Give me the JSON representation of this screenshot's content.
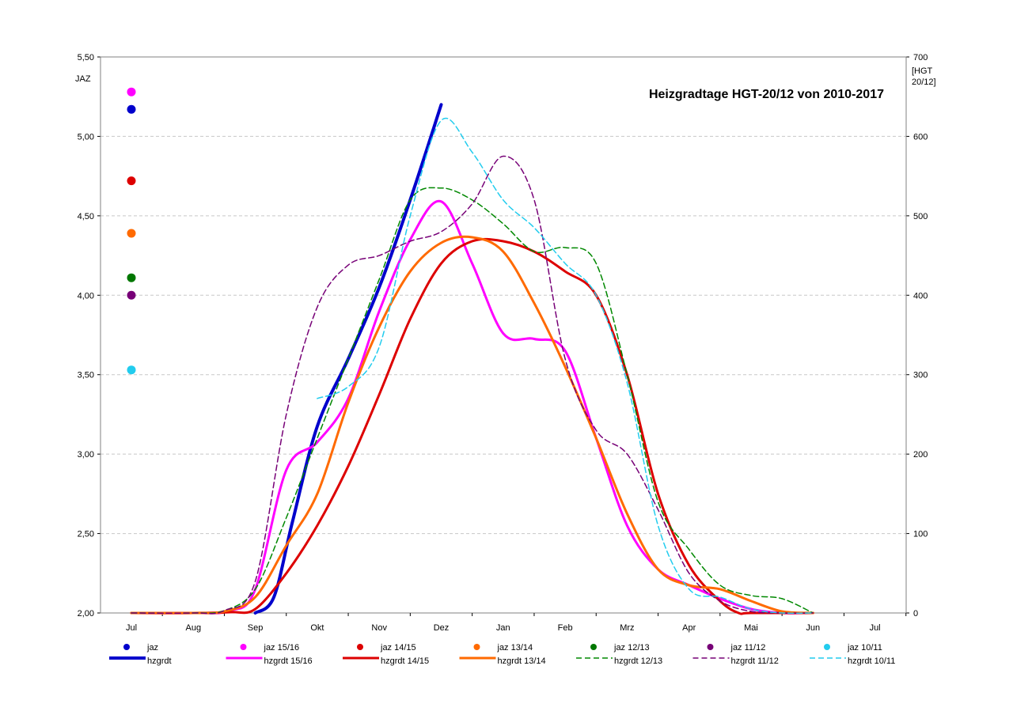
{
  "chart_data": {
    "type": "line",
    "title": "Heizgradtage HGT-20/12 von 2010-2017",
    "y_left_label": "JAZ",
    "y_right_label_lines": [
      "[HGT",
      "20/12]"
    ],
    "y_left_range": [
      2.0,
      5.5
    ],
    "y_left_ticks": [
      "2,00",
      "2,50",
      "3,00",
      "3,50",
      "4,00",
      "4,50",
      "5,00",
      "5,50"
    ],
    "y_right_range": [
      0,
      700
    ],
    "y_right_ticks": [
      "0",
      "100",
      "200",
      "300",
      "400",
      "500",
      "600",
      "700"
    ],
    "x_categories": [
      "Jul",
      "Aug",
      "Sep",
      "Okt",
      "Nov",
      "Dez",
      "Jan",
      "Feb",
      "Mrz",
      "Apr",
      "Mai",
      "Jun",
      "Jul"
    ],
    "grid": "horizontal dashed",
    "legend_position": "bottom",
    "jaz_points": [
      {
        "name": "jaz",
        "value": 5.17,
        "color": "#0000cc"
      },
      {
        "name": "jaz 15/16",
        "value": 5.28,
        "color": "#ff00ff"
      },
      {
        "name": "jaz 14/15",
        "value": 4.72,
        "color": "#dd0000"
      },
      {
        "name": "jaz 13/14",
        "value": 4.39,
        "color": "#ff6a00"
      },
      {
        "name": "jaz 12/13",
        "value": 4.11,
        "color": "#007700"
      },
      {
        "name": "jaz 11/12",
        "value": 4.0,
        "color": "#770077"
      },
      {
        "name": "jaz 10/11",
        "value": 3.53,
        "color": "#22ccee"
      }
    ],
    "series": [
      {
        "name": "hzgrdt",
        "color": "#0000cc",
        "dash": false,
        "width": 4,
        "points": [
          [
            2.0,
            0
          ],
          [
            2.3,
            20
          ],
          [
            2.6,
            115
          ],
          [
            3.0,
            235
          ],
          [
            3.5,
            320
          ],
          [
            4.0,
            410
          ],
          [
            4.5,
            520
          ],
          [
            5.0,
            640
          ]
        ]
      },
      {
        "name": "hzgrdt 15/16",
        "color": "#ff00ff",
        "dash": false,
        "width": 3,
        "points": [
          [
            0,
            0
          ],
          [
            1.0,
            0
          ],
          [
            1.6,
            3
          ],
          [
            2.0,
            30
          ],
          [
            2.5,
            180
          ],
          [
            3.0,
            215
          ],
          [
            3.5,
            270
          ],
          [
            4.0,
            380
          ],
          [
            4.5,
            470
          ],
          [
            5.0,
            518
          ],
          [
            5.5,
            440
          ],
          [
            6.0,
            352
          ],
          [
            6.5,
            345
          ],
          [
            7.0,
            330
          ],
          [
            7.5,
            220
          ],
          [
            8.0,
            110
          ],
          [
            8.5,
            55
          ],
          [
            9.0,
            35
          ],
          [
            9.5,
            18
          ],
          [
            10.0,
            5
          ],
          [
            10.5,
            0
          ],
          [
            11.0,
            0
          ]
        ]
      },
      {
        "name": "hzgrdt 14/15",
        "color": "#dd0000",
        "dash": false,
        "width": 3,
        "points": [
          [
            0,
            0
          ],
          [
            1.0,
            0
          ],
          [
            1.6,
            1
          ],
          [
            2.0,
            5
          ],
          [
            2.5,
            50
          ],
          [
            3.0,
            110
          ],
          [
            3.5,
            185
          ],
          [
            4.0,
            275
          ],
          [
            4.5,
            370
          ],
          [
            5.0,
            440
          ],
          [
            5.5,
            468
          ],
          [
            6.0,
            468
          ],
          [
            6.5,
            455
          ],
          [
            7.0,
            430
          ],
          [
            7.5,
            400
          ],
          [
            8.0,
            300
          ],
          [
            8.5,
            150
          ],
          [
            9.0,
            60
          ],
          [
            9.5,
            15
          ],
          [
            9.8,
            0
          ],
          [
            10.0,
            0
          ],
          [
            11.0,
            0
          ]
        ]
      },
      {
        "name": "hzgrdt 13/14",
        "color": "#ff6a00",
        "dash": false,
        "width": 3,
        "points": [
          [
            0,
            0
          ],
          [
            1.0,
            0
          ],
          [
            1.5,
            2
          ],
          [
            2.0,
            20
          ],
          [
            2.5,
            85
          ],
          [
            3.0,
            150
          ],
          [
            3.5,
            265
          ],
          [
            4.0,
            360
          ],
          [
            4.5,
            430
          ],
          [
            5.0,
            466
          ],
          [
            5.5,
            473
          ],
          [
            6.0,
            455
          ],
          [
            6.5,
            390
          ],
          [
            7.0,
            310
          ],
          [
            7.5,
            220
          ],
          [
            8.0,
            125
          ],
          [
            8.5,
            55
          ],
          [
            9.0,
            35
          ],
          [
            9.5,
            30
          ],
          [
            10.0,
            15
          ],
          [
            10.5,
            2
          ],
          [
            11.0,
            0
          ]
        ]
      },
      {
        "name": "hzgrdt 12/13",
        "color": "#008800",
        "dash": true,
        "width": 1.5,
        "points": [
          [
            0,
            0
          ],
          [
            1.0,
            0
          ],
          [
            1.5,
            3
          ],
          [
            2.0,
            30
          ],
          [
            2.5,
            120
          ],
          [
            3.0,
            220
          ],
          [
            3.5,
            320
          ],
          [
            4.0,
            420
          ],
          [
            4.5,
            520
          ],
          [
            5.0,
            535
          ],
          [
            5.5,
            520
          ],
          [
            6.0,
            490
          ],
          [
            6.5,
            455
          ],
          [
            7.0,
            460
          ],
          [
            7.5,
            440
          ],
          [
            8.0,
            300
          ],
          [
            8.5,
            140
          ],
          [
            9.0,
            80
          ],
          [
            9.5,
            35
          ],
          [
            10.0,
            22
          ],
          [
            10.5,
            18
          ],
          [
            11.0,
            0
          ]
        ]
      },
      {
        "name": "hzgrdt 11/12",
        "color": "#770077",
        "dash": true,
        "width": 1.5,
        "points": [
          [
            0,
            0
          ],
          [
            1.0,
            0
          ],
          [
            1.5,
            3
          ],
          [
            2.0,
            40
          ],
          [
            2.5,
            250
          ],
          [
            3.0,
            385
          ],
          [
            3.5,
            438
          ],
          [
            4.0,
            450
          ],
          [
            4.5,
            468
          ],
          [
            5.0,
            480
          ],
          [
            5.5,
            515
          ],
          [
            6.0,
            575
          ],
          [
            6.5,
            520
          ],
          [
            7.0,
            320
          ],
          [
            7.5,
            230
          ],
          [
            8.0,
            200
          ],
          [
            8.5,
            130
          ],
          [
            9.0,
            50
          ],
          [
            9.5,
            15
          ],
          [
            10.0,
            2
          ],
          [
            10.5,
            0
          ],
          [
            11.0,
            0
          ]
        ]
      },
      {
        "name": "hzgrdt 10/11",
        "color": "#22ccee",
        "dash": true,
        "width": 1.5,
        "points": [
          [
            3.0,
            270
          ],
          [
            3.5,
            285
          ],
          [
            4.0,
            335
          ],
          [
            4.5,
            500
          ],
          [
            5.0,
            620
          ],
          [
            5.5,
            580
          ],
          [
            6.0,
            520
          ],
          [
            6.5,
            485
          ],
          [
            7.0,
            440
          ],
          [
            7.5,
            400
          ],
          [
            8.0,
            290
          ],
          [
            8.5,
            110
          ],
          [
            9.0,
            30
          ],
          [
            9.5,
            20
          ],
          [
            10.0,
            5
          ],
          [
            10.5,
            0
          ],
          [
            11.0,
            0
          ]
        ]
      }
    ],
    "legend": [
      {
        "label": "jaz",
        "color": "#0000cc",
        "kind": "dot"
      },
      {
        "label": "jaz 15/16",
        "color": "#ff00ff",
        "kind": "dot"
      },
      {
        "label": "jaz 14/15",
        "color": "#dd0000",
        "kind": "dot"
      },
      {
        "label": "jaz 13/14",
        "color": "#ff6a00",
        "kind": "dot"
      },
      {
        "label": "jaz 12/13",
        "color": "#007700",
        "kind": "dot"
      },
      {
        "label": "jaz 11/12",
        "color": "#770077",
        "kind": "dot"
      },
      {
        "label": "jaz 10/11",
        "color": "#22ccee",
        "kind": "dot"
      },
      {
        "label": "hzgrdt",
        "color": "#0000cc",
        "kind": "line",
        "dash": false,
        "width": 4
      },
      {
        "label": "hzgrdt 15/16",
        "color": "#ff00ff",
        "kind": "line",
        "dash": false,
        "width": 3
      },
      {
        "label": "hzgrdt 14/15",
        "color": "#dd0000",
        "kind": "line",
        "dash": false,
        "width": 3
      },
      {
        "label": "hzgrdt 13/14",
        "color": "#ff6a00",
        "kind": "line",
        "dash": false,
        "width": 3
      },
      {
        "label": "hzgrdt 12/13",
        "color": "#008800",
        "kind": "line",
        "dash": true,
        "width": 1.5
      },
      {
        "label": "hzgrdt 11/12",
        "color": "#770077",
        "kind": "line",
        "dash": true,
        "width": 1.5
      },
      {
        "label": "hzgrdt 10/11",
        "color": "#22ccee",
        "kind": "line",
        "dash": true,
        "width": 1.5
      }
    ]
  }
}
